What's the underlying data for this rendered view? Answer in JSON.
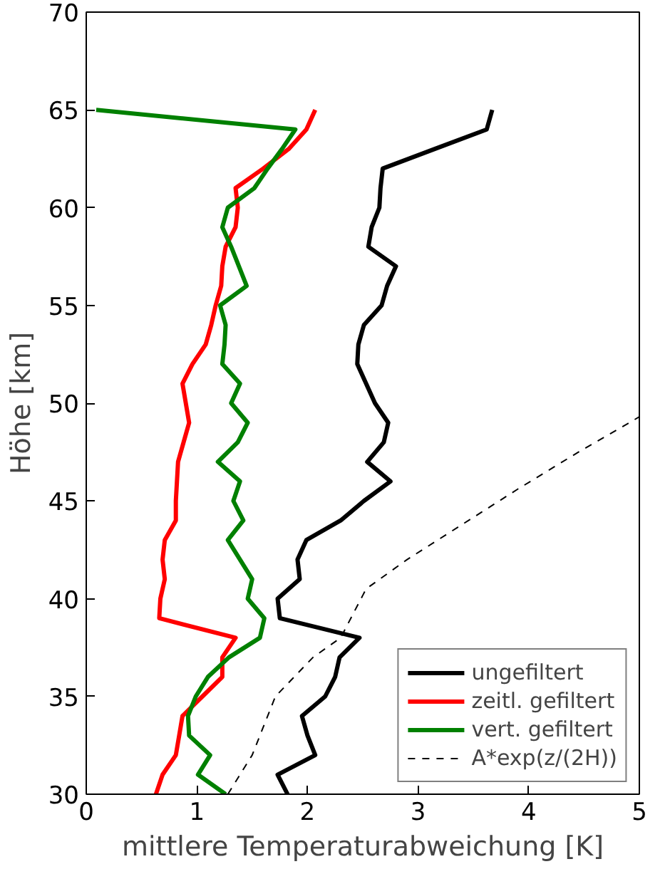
{
  "chart_data": {
    "type": "line",
    "xlabel": "mittlere Temperaturabweichung [K]",
    "ylabel": "Höhe [km]",
    "xlim": [
      0,
      5
    ],
    "ylim": [
      30,
      70
    ],
    "xticks": [
      0,
      1,
      2,
      3,
      4,
      5
    ],
    "yticks": [
      30,
      35,
      40,
      45,
      50,
      55,
      60,
      65,
      70
    ],
    "grid": false,
    "legend": "bottom right",
    "marker": "none",
    "series": [
      {
        "name": "ungefiltert",
        "color": "#000000",
        "line_style": "solid",
        "x": [
          1.82,
          1.73,
          2.07,
          2.0,
          1.95,
          2.16,
          2.25,
          2.29,
          2.47,
          1.75,
          1.73,
          1.93,
          1.91,
          1.99,
          2.3,
          2.51,
          2.75,
          2.54,
          2.69,
          2.73,
          2.61,
          2.53,
          2.45,
          2.46,
          2.51,
          2.67,
          2.72,
          2.8,
          2.55,
          2.58,
          2.65,
          2.66,
          2.68,
          3.15,
          3.62,
          3.67
        ],
        "values": [
          30,
          31,
          32,
          33,
          34,
          35,
          36,
          37,
          38,
          39,
          40,
          41,
          42,
          43,
          44,
          45,
          46,
          47,
          48,
          49,
          50,
          51,
          52,
          53,
          54,
          55,
          56,
          57,
          58,
          59,
          60,
          61,
          62,
          63,
          64,
          65
        ]
      },
      {
        "name": "zeitl. gefiltert",
        "color": "#ff0000",
        "line_style": "solid",
        "x": [
          0.63,
          0.69,
          0.81,
          0.84,
          0.87,
          1.05,
          1.23,
          1.23,
          1.35,
          0.66,
          0.67,
          0.71,
          0.69,
          0.71,
          0.81,
          0.81,
          0.82,
          0.83,
          0.88,
          0.93,
          0.9,
          0.87,
          0.96,
          1.08,
          1.13,
          1.17,
          1.22,
          1.23,
          1.26,
          1.35,
          1.37,
          1.35,
          1.6,
          1.83,
          1.99,
          2.07
        ],
        "values": [
          30,
          31,
          32,
          33,
          34,
          35,
          36,
          37,
          38,
          39,
          40,
          41,
          42,
          43,
          44,
          45,
          46,
          47,
          48,
          49,
          50,
          51,
          52,
          53,
          54,
          55,
          56,
          57,
          58,
          59,
          60,
          61,
          62,
          63,
          64,
          65
        ]
      },
      {
        "name": "vert. gefiltert",
        "color": "#008000",
        "line_style": "solid",
        "x": [
          1.26,
          1.01,
          1.12,
          0.93,
          0.92,
          0.99,
          1.1,
          1.29,
          1.57,
          1.61,
          1.46,
          1.5,
          1.39,
          1.28,
          1.42,
          1.33,
          1.39,
          1.19,
          1.37,
          1.46,
          1.31,
          1.39,
          1.23,
          1.25,
          1.26,
          1.21,
          1.45,
          1.38,
          1.31,
          1.23,
          1.28,
          1.52,
          1.64,
          1.77,
          1.89,
          0.09
        ],
        "values": [
          30,
          31,
          32,
          33,
          34,
          35,
          36,
          37,
          38,
          39,
          40,
          41,
          42,
          43,
          44,
          45,
          46,
          47,
          48,
          49,
          50,
          51,
          52,
          53,
          54,
          55,
          56,
          57,
          58,
          59,
          60,
          61,
          62,
          63,
          64,
          65
        ]
      },
      {
        "name": "A*exp(z/(2H))",
        "color": "#000000",
        "line_style": "dashed",
        "x": [
          1.28,
          1.5,
          1.71,
          2.05,
          2.3,
          2.53,
          2.9,
          3.4,
          3.9,
          4.45,
          5.0
        ],
        "values": [
          30,
          32,
          35,
          37,
          38,
          40.5,
          42,
          43.8,
          45.6,
          47.5,
          49.3
        ]
      }
    ]
  }
}
